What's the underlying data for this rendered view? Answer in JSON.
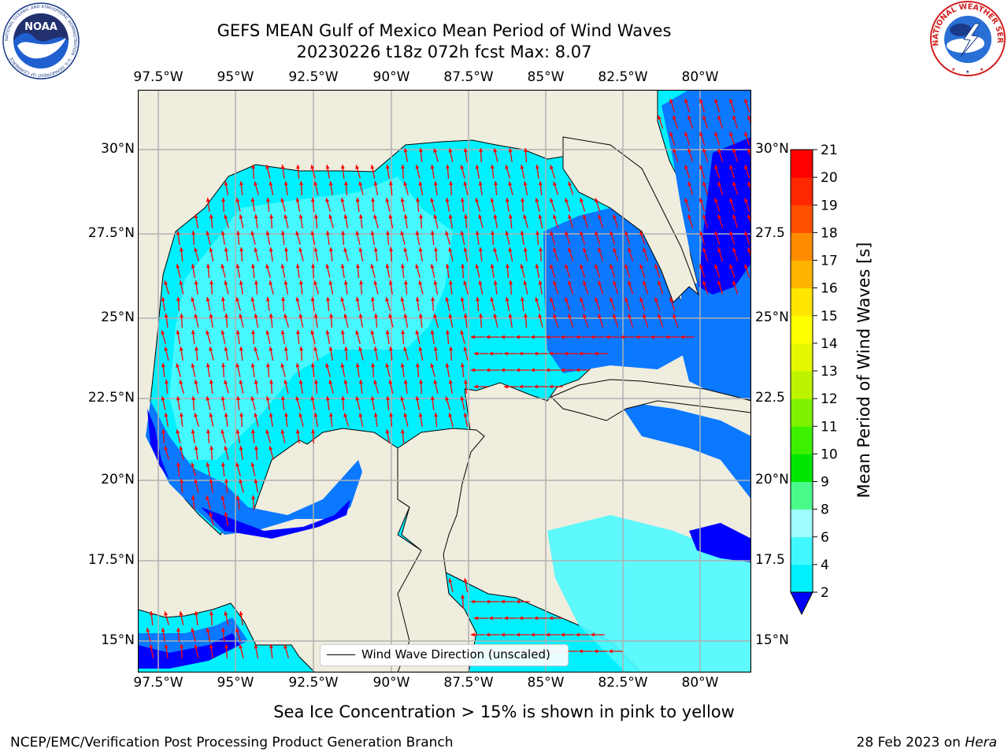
{
  "title_line1": "GEFS MEAN Gulf of Mexico Mean Period of Wind Waves",
  "title_line2": "20230226 t18z 072h fcst   Max: 8.07",
  "colorbar_label": "Mean Period of Wind Waves [s]",
  "colorbar_ticks": [
    "2",
    "4",
    "6",
    "8",
    "9",
    "10",
    "11",
    "12",
    "13",
    "14",
    "15",
    "16",
    "17",
    "18",
    "19",
    "20",
    "21"
  ],
  "colorbar_colors": [
    "#0a78ff",
    "#00f0ff",
    "#40f8ff",
    "#9ffcff",
    "#4cfa8c",
    "#00e600",
    "#3cf000",
    "#7ef200",
    "#bef300",
    "#e6f700",
    "#ffff00",
    "#ffe600",
    "#ffb400",
    "#ff8c00",
    "#ff5000",
    "#ff2800",
    "#ff0000"
  ],
  "map_colors": {
    "land": "#efedde",
    "coast": "#000000",
    "ocean_light": "#4dfaff",
    "ocean_mid": "#00f0ff",
    "ocean_blue": "#0a78ff",
    "ocean_deep": "#0000ff",
    "grid": "#b0b0b0",
    "arrow": "#ff0000"
  },
  "lon_ticks": [
    "97.5°W",
    "95°W",
    "92.5°W",
    "90°W",
    "87.5°W",
    "85°W",
    "82.5°W",
    "80°W"
  ],
  "lat_ticks_left": [
    "30°N",
    "27.5°N",
    "25°N",
    "22.5°N",
    "20°N",
    "17.5°N",
    "15°N"
  ],
  "lat_ticks_right": [
    "30°N",
    "27.5",
    "25°N",
    "22.5",
    "20°N",
    "17.5",
    "15°N"
  ],
  "legend_label": "Wind Wave Direction (unscaled)",
  "bottom_note": "Sea Ice Concentration > 15% is shown in pink to yellow",
  "footer_left": "NCEP/EMC/Verification Post Processing Product Generation Branch",
  "footer_date": "28 Feb 2023 on ",
  "footer_host": "Hera",
  "noaa_logo": {
    "center_text": "NOAA",
    "ring_text": "NATIONAL OCEANIC AND ATMOSPHERIC ADMINISTRATION · U.S. DEPARTMENT OF COMMERCE"
  },
  "nws_logo": {
    "ring_text": "NATIONAL WEATHER SERVICE"
  }
}
